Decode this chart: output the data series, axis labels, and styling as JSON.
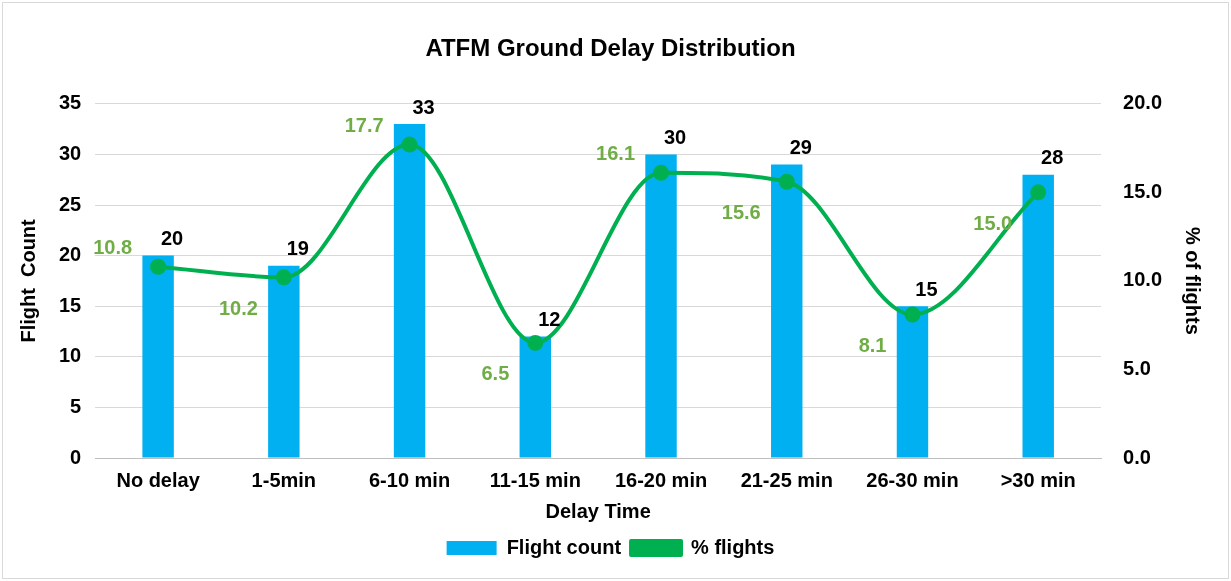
{
  "chart_data": {
    "type": "bar",
    "title": "ATFM Ground Delay Distribution",
    "xlabel": "Delay Time",
    "ylabel": "Flight  Count",
    "y2label": "% of flights",
    "categories": [
      "No delay",
      "1-5min",
      "6-10 min",
      "11-15 min",
      "16-20 min",
      "21-25 min",
      "26-30 min",
      ">30 min"
    ],
    "series": [
      {
        "name": "Flight count",
        "type": "bar",
        "color": "#00b0f0",
        "values": [
          20,
          19,
          33,
          12,
          30,
          29,
          15,
          28
        ]
      },
      {
        "name": "% flights",
        "type": "line",
        "axis": "y2",
        "color": "#00b050",
        "marker": "circle",
        "values": [
          10.8,
          10.2,
          17.7,
          6.5,
          16.1,
          15.6,
          8.1,
          15.0
        ],
        "value_labels": [
          "10.8",
          "10.2",
          "17.7",
          "6.5",
          "16.1",
          "15.6",
          "8.1",
          "15.0"
        ]
      }
    ],
    "ylim": [
      0,
      35
    ],
    "yticks": [
      0,
      5,
      10,
      15,
      20,
      25,
      30,
      35
    ],
    "y2lim": [
      0,
      20
    ],
    "y2ticks": [
      {
        "value": 0,
        "label": "0.0"
      },
      {
        "value": 5,
        "label": "5.0"
      },
      {
        "value": 10,
        "label": "10.0"
      },
      {
        "value": 15,
        "label": "15.0"
      },
      {
        "value": 20,
        "label": "20.0"
      }
    ],
    "grid": "y",
    "legend": "bottom",
    "data_labels": true
  }
}
